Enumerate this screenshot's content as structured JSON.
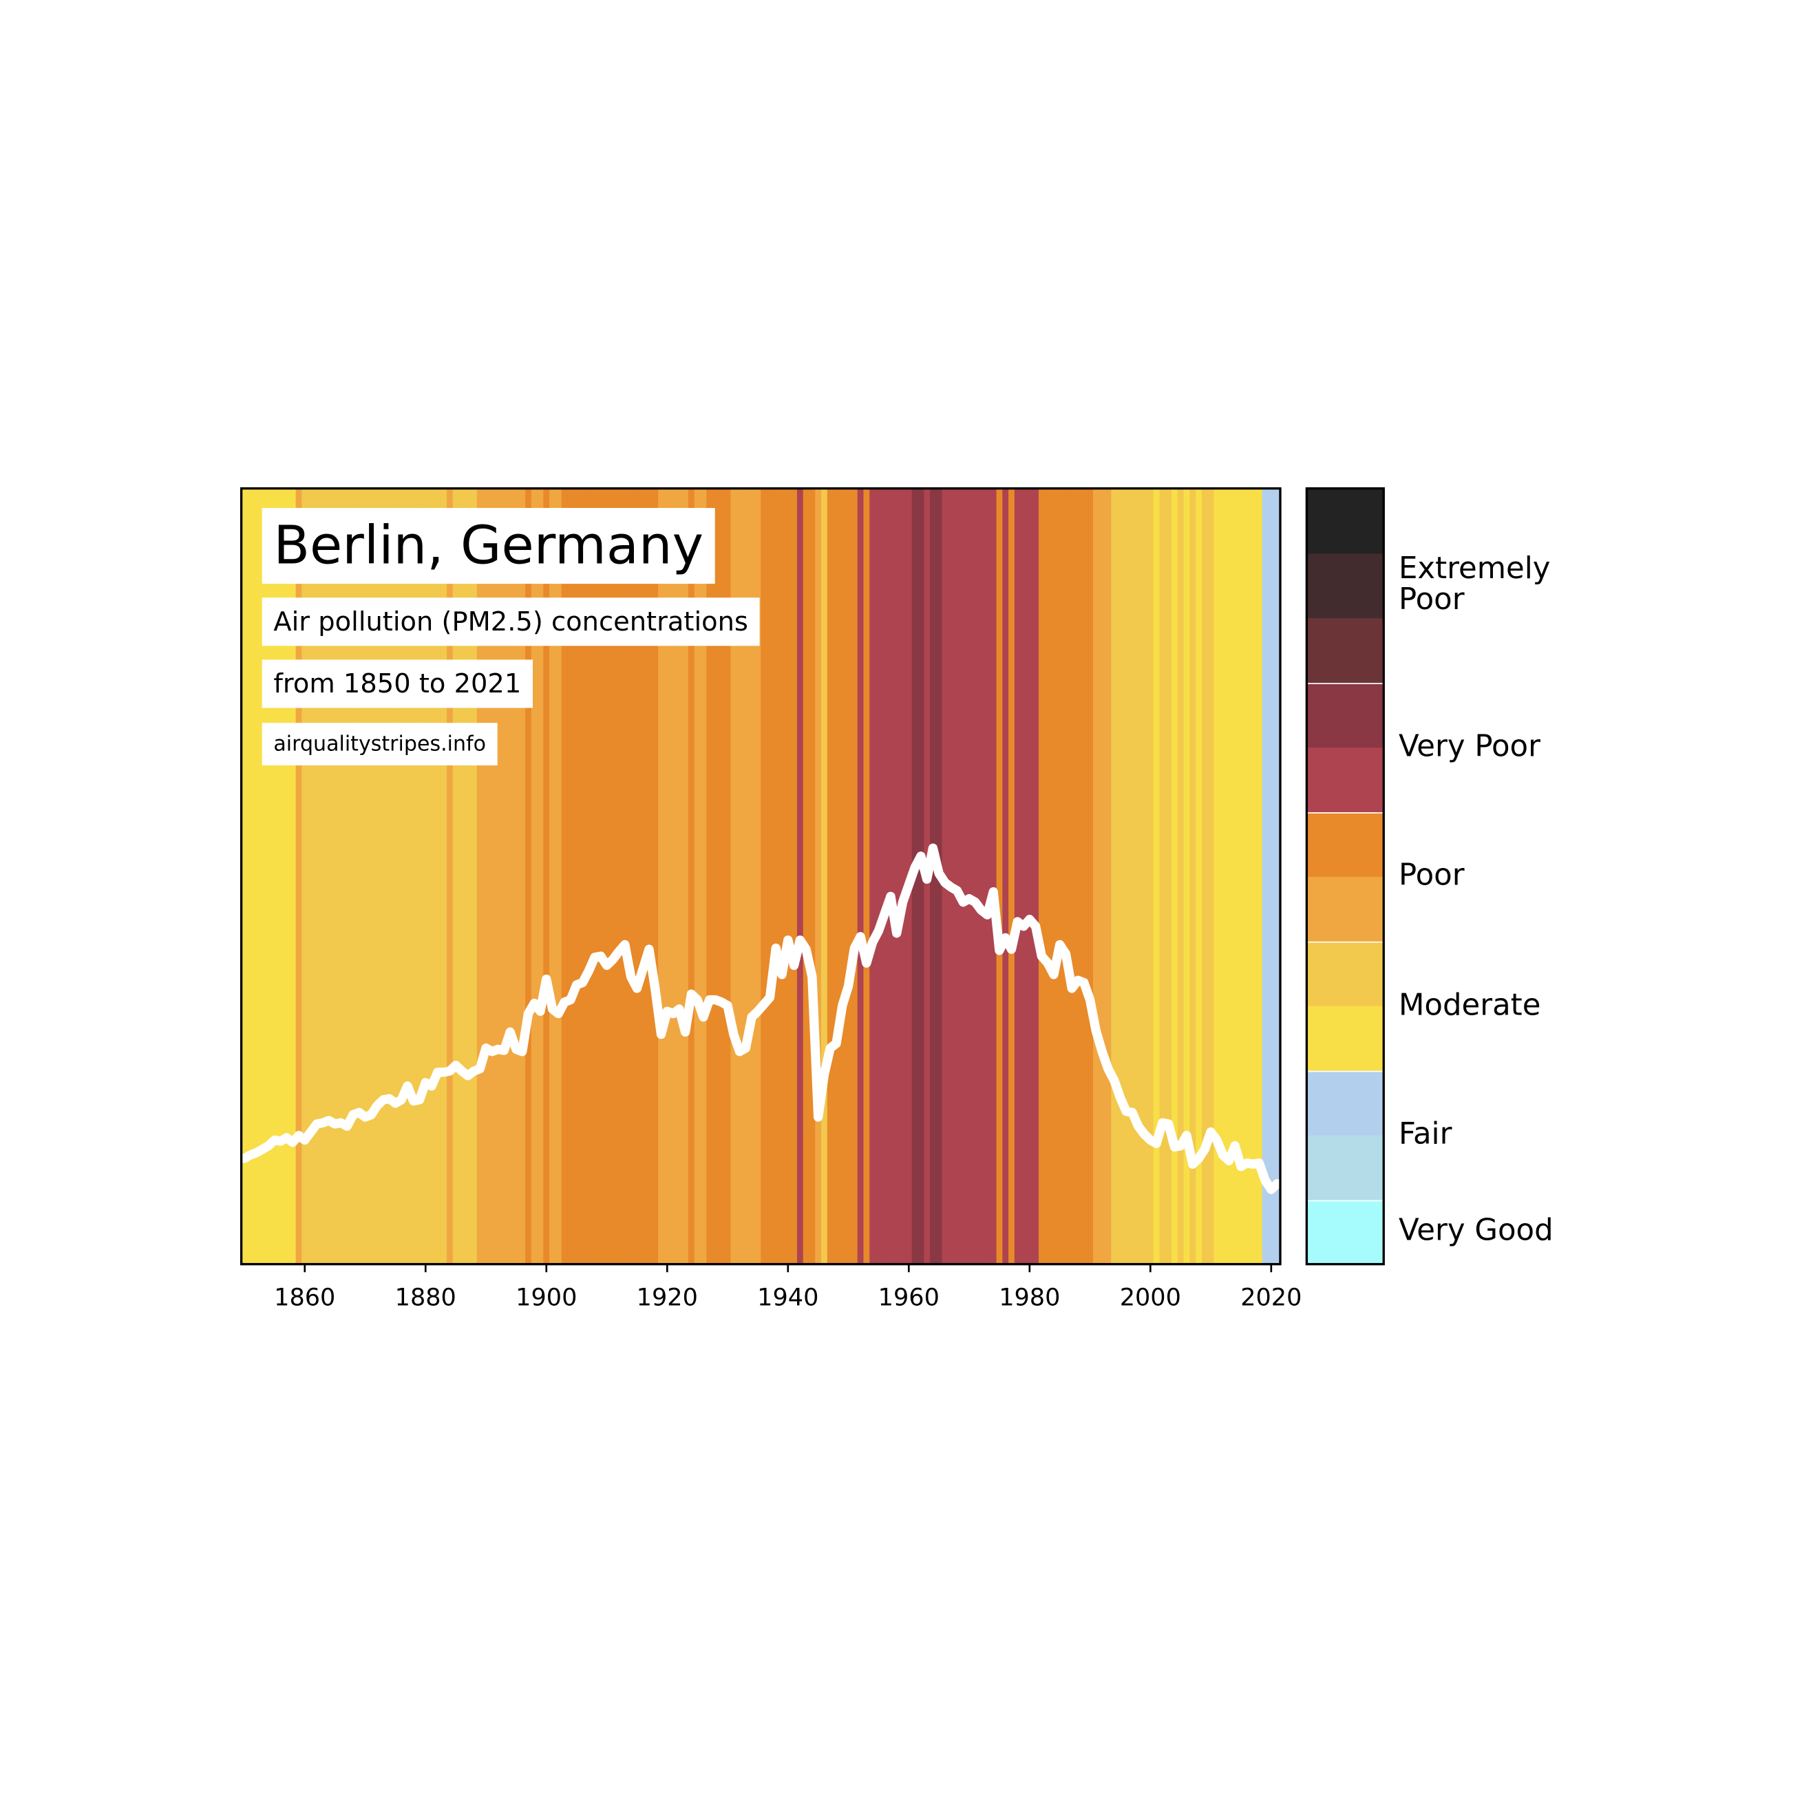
{
  "chart_data": {
    "type": "line",
    "title": "Berlin, Germany",
    "subtitles": [
      "Air pollution (PM2.5) concentrations",
      "from 1850 to 2021"
    ],
    "source": "airqualitystripes.info",
    "x": [
      1850,
      1851,
      1852,
      1853,
      1854,
      1855,
      1856,
      1857,
      1858,
      1859,
      1860,
      1861,
      1862,
      1863,
      1864,
      1865,
      1866,
      1867,
      1868,
      1869,
      1870,
      1871,
      1872,
      1873,
      1874,
      1875,
      1876,
      1877,
      1878,
      1879,
      1880,
      1881,
      1882,
      1883,
      1884,
      1885,
      1886,
      1887,
      1888,
      1889,
      1890,
      1891,
      1892,
      1893,
      1894,
      1895,
      1896,
      1897,
      1898,
      1899,
      1900,
      1901,
      1902,
      1903,
      1904,
      1905,
      1906,
      1907,
      1908,
      1909,
      1910,
      1911,
      1912,
      1913,
      1914,
      1915,
      1916,
      1917,
      1918,
      1919,
      1920,
      1921,
      1922,
      1923,
      1924,
      1925,
      1926,
      1927,
      1928,
      1929,
      1930,
      1931,
      1932,
      1933,
      1934,
      1935,
      1936,
      1937,
      1938,
      1939,
      1940,
      1941,
      1942,
      1943,
      1944,
      1945,
      1946,
      1947,
      1948,
      1949,
      1950,
      1951,
      1952,
      1953,
      1954,
      1955,
      1956,
      1957,
      1958,
      1959,
      1960,
      1961,
      1962,
      1963,
      1964,
      1965,
      1966,
      1967,
      1968,
      1969,
      1970,
      1971,
      1972,
      1973,
      1974,
      1975,
      1976,
      1977,
      1978,
      1979,
      1980,
      1981,
      1982,
      1983,
      1984,
      1985,
      1986,
      1987,
      1988,
      1989,
      1990,
      1991,
      1992,
      1993,
      1994,
      1995,
      1996,
      1997,
      1998,
      1999,
      2000,
      2001,
      2002,
      2003,
      2004,
      2005,
      2006,
      2007,
      2008,
      2009,
      2010,
      2011,
      2012,
      2013,
      2014,
      2015,
      2016,
      2017,
      2018,
      2019,
      2020,
      2021
    ],
    "values": [
      9.2,
      9.5,
      9.7,
      10.0,
      10.3,
      10.8,
      10.7,
      11.0,
      10.6,
      11.2,
      10.8,
      11.5,
      12.2,
      12.3,
      12.5,
      12.2,
      12.3,
      12.0,
      13.0,
      13.2,
      12.8,
      13.0,
      13.8,
      14.3,
      14.4,
      14.0,
      14.3,
      15.5,
      14.2,
      14.3,
      15.8,
      15.5,
      16.7,
      16.7,
      16.8,
      17.3,
      16.8,
      16.4,
      16.8,
      17.0,
      18.8,
      18.5,
      18.7,
      18.6,
      20.2,
      18.7,
      18.5,
      21.8,
      22.7,
      22.0,
      24.8,
      22.2,
      21.8,
      22.8,
      23.0,
      24.3,
      24.5,
      25.5,
      26.7,
      26.8,
      26.0,
      26.5,
      27.2,
      27.8,
      25.0,
      24.0,
      25.7,
      27.4,
      24.0,
      20.0,
      22.0,
      21.8,
      22.2,
      20.2,
      23.5,
      23.0,
      21.5,
      23.0,
      23.0,
      22.8,
      22.5,
      20.0,
      18.5,
      18.8,
      21.5,
      22.0,
      22.6,
      23.2,
      27.5,
      25.2,
      28.2,
      26.0,
      28.2,
      27.4,
      25.0,
      12.8,
      16.5,
      18.8,
      19.2,
      22.5,
      24.2,
      27.5,
      28.5,
      26.2,
      28.0,
      29.0,
      30.5,
      32.0,
      28.8,
      31.5,
      33.0,
      34.5,
      35.5,
      33.5,
      36.2,
      34.0,
      33.2,
      32.8,
      32.5,
      31.5,
      31.8,
      31.5,
      30.8,
      30.4,
      32.4,
      27.3,
      28.4,
      27.4,
      29.8,
      29.4,
      30.0,
      29.4,
      26.8,
      26.2,
      25.2,
      27.8,
      27.0,
      24.0,
      24.7,
      24.5,
      23.0,
      20.3,
      18.5,
      17.0,
      16.0,
      14.5,
      13.3,
      13.2,
      12.0,
      11.3,
      10.8,
      10.5,
      12.3,
      12.2,
      10.2,
      10.3,
      11.2,
      8.7,
      9.2,
      10.0,
      11.5,
      10.8,
      9.5,
      9.0,
      10.3,
      8.5,
      8.8,
      8.7,
      8.8,
      7.3,
      6.5,
      7.0
    ],
    "line_color": "#ffffff",
    "stripe_colors": [
      "#f8df47",
      "#f8df47",
      "#f8df47",
      "#f8df47",
      "#f8df47",
      "#f8df47",
      "#f8df47",
      "#f8df47",
      "#f8df47",
      "#f0a742",
      "#f2c94c",
      "#f2c94c",
      "#f2c94c",
      "#f2c94c",
      "#f2c94c",
      "#f2c94c",
      "#f2c94c",
      "#f2c94c",
      "#f2c94c",
      "#f2c94c",
      "#f2c94c",
      "#f2c94c",
      "#f2c94c",
      "#f2c94c",
      "#f2c94c",
      "#f2c94c",
      "#f2c94c",
      "#f2c94c",
      "#f2c94c",
      "#f2c94c",
      "#f2c94c",
      "#f2c94c",
      "#f2c94c",
      "#f2c94c",
      "#f0a742",
      "#f2c94c",
      "#f2c94c",
      "#f2c94c",
      "#f2c94c",
      "#f0a742",
      "#f0a742",
      "#f0a742",
      "#f0a742",
      "#f0a742",
      "#f0a742",
      "#f0a742",
      "#f0a742",
      "#e8892a",
      "#f0a742",
      "#f0a742",
      "#e8892a",
      "#f0a742",
      "#f0a742",
      "#e8892a",
      "#e8892a",
      "#e8892a",
      "#e8892a",
      "#e8892a",
      "#e8892a",
      "#e8892a",
      "#e8892a",
      "#e8892a",
      "#e8892a",
      "#e8892a",
      "#e8892a",
      "#e8892a",
      "#e8892a",
      "#e8892a",
      "#e8892a",
      "#f0a742",
      "#f0a742",
      "#f0a742",
      "#f0a742",
      "#f0a742",
      "#e8892a",
      "#f0a742",
      "#f0a742",
      "#e8892a",
      "#e8892a",
      "#e8892a",
      "#e8892a",
      "#f0a742",
      "#f0a742",
      "#f0a742",
      "#f0a742",
      "#f0a742",
      "#e8892a",
      "#e8892a",
      "#e8892a",
      "#e8892a",
      "#e8892a",
      "#e8892a",
      "#ad4450",
      "#e8892a",
      "#e8892a",
      "#f0a742",
      "#f2c94c",
      "#e8892a",
      "#e8892a",
      "#e8892a",
      "#e8892a",
      "#e8892a",
      "#ad4450",
      "#e8892a",
      "#ad4450",
      "#ad4450",
      "#ad4450",
      "#ad4450",
      "#ad4450",
      "#ad4450",
      "#ad4450",
      "#8a3844",
      "#8a3844",
      "#ad4450",
      "#8a3844",
      "#8a3844",
      "#ad4450",
      "#ad4450",
      "#ad4450",
      "#ad4450",
      "#ad4450",
      "#ad4450",
      "#ad4450",
      "#ad4450",
      "#ad4450",
      "#e8892a",
      "#ad4450",
      "#e8892a",
      "#ad4450",
      "#ad4450",
      "#ad4450",
      "#ad4450",
      "#e8892a",
      "#e8892a",
      "#e8892a",
      "#e8892a",
      "#e8892a",
      "#e8892a",
      "#e8892a",
      "#e8892a",
      "#e8892a",
      "#f0a742",
      "#f0a742",
      "#f0a742",
      "#f2c94c",
      "#f2c94c",
      "#f2c94c",
      "#f2c94c",
      "#f2c94c",
      "#f2c94c",
      "#f2c94c",
      "#f8df47",
      "#f2c94c",
      "#f2c94c",
      "#f8df47",
      "#f2c94c",
      "#f8df47",
      "#f2c94c",
      "#f8df47",
      "#f2c94c",
      "#f2c94c",
      "#f8df47",
      "#f8df47",
      "#f8df47",
      "#f8df47",
      "#f8df47",
      "#f8df47",
      "#f8df47",
      "#f8df47",
      "#b3cfee",
      "#b3cfee",
      "#b3cfee"
    ],
    "xlim": [
      1849.5,
      2021.5
    ],
    "ylim": [
      0,
      67.5
    ],
    "xticks": [
      1860,
      1880,
      1900,
      1920,
      1940,
      1960,
      1980,
      2000,
      2020
    ],
    "legend": [
      {
        "label": "Very Good",
        "colors": [
          "#a6fcfc"
        ]
      },
      {
        "label": "Fair",
        "colors": [
          "#b3dbe8",
          "#b3cfee"
        ]
      },
      {
        "label": "Moderate",
        "colors": [
          "#f8df47",
          "#f2c94c"
        ]
      },
      {
        "label": "Poor",
        "colors": [
          "#f0a742",
          "#e8892a"
        ]
      },
      {
        "label": "Very Poor",
        "colors": [
          "#ad4450",
          "#8a3844"
        ]
      },
      {
        "label": "Extremely\nPoor",
        "colors": [
          "#6b3538",
          "#432c2e",
          "#232323"
        ]
      }
    ]
  }
}
